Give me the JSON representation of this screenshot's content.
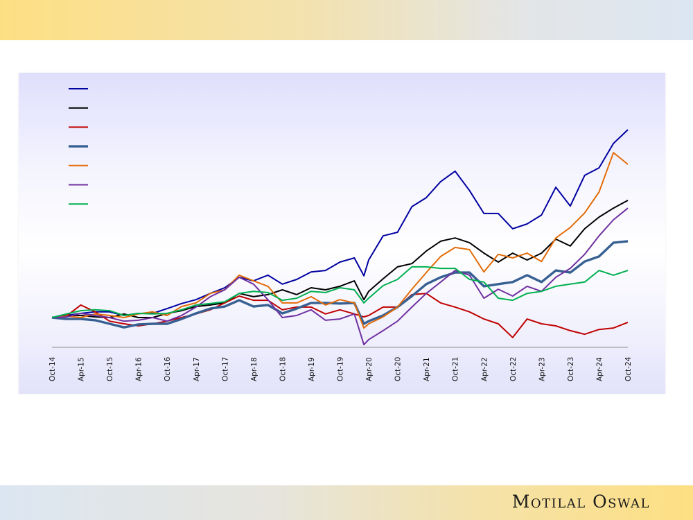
{
  "logo": {
    "text": "Motilal Oswal"
  },
  "chart_data": {
    "type": "line",
    "title": "",
    "xlabel": "",
    "ylabel": "",
    "x_unit": "months since Oct-14",
    "x": [
      0,
      3,
      6,
      9,
      12,
      15,
      18,
      21,
      24,
      27,
      30,
      33,
      36,
      39,
      42,
      45,
      48,
      51,
      54,
      57,
      60,
      63,
      65,
      66,
      69,
      72,
      75,
      78,
      81,
      84,
      87,
      90,
      93,
      96,
      99,
      102,
      105,
      108,
      111,
      114,
      117,
      120
    ],
    "xlim": [
      0,
      120
    ],
    "ylim": [
      0,
      900
    ],
    "grid": false,
    "y_axis_visible": false,
    "legend": {
      "placement": "top-left",
      "labels_visible": false
    },
    "x_tick_labels": [
      "Oct-14",
      "Apr-15",
      "Oct-15",
      "Apr-16",
      "Oct-16",
      "Apr-17",
      "Oct-17",
      "Apr-18",
      "Oct-18",
      "Apr-19",
      "Oct-19",
      "Apr-20",
      "Oct-20",
      "Apr-21",
      "Oct-21",
      "Apr-22",
      "Oct-22",
      "Apr-23",
      "Oct-23",
      "Apr-24",
      "Oct-24"
    ],
    "x_tick_months": [
      0,
      6,
      12,
      18,
      24,
      30,
      36,
      42,
      48,
      54,
      60,
      66,
      72,
      78,
      84,
      90,
      96,
      102,
      108,
      114,
      120
    ],
    "series": [
      {
        "color": "#0000a0",
        "weight": "normal",
        "values": [
          100,
          107,
          114,
          119,
          119,
          107,
          114,
          114,
          130,
          147,
          160,
          181,
          200,
          235,
          223,
          242,
          212,
          228,
          253,
          258,
          286,
          300,
          240,
          293,
          374,
          386,
          472,
          502,
          556,
          591,
          526,
          449,
          449,
          398,
          414,
          444,
          537,
          474,
          577,
          602,
          684,
          730
        ]
      },
      {
        "color": "#000000",
        "weight": "normal",
        "values": [
          100,
          107,
          107,
          102,
          100,
          112,
          100,
          100,
          114,
          123,
          137,
          142,
          149,
          181,
          170,
          177,
          193,
          177,
          200,
          193,
          205,
          223,
          160,
          188,
          230,
          270,
          281,
          323,
          356,
          367,
          351,
          316,
          286,
          316,
          293,
          316,
          363,
          340,
          398,
          437,
          467,
          493
        ]
      },
      {
        "color": "#c00000",
        "weight": "normal",
        "values": [
          100,
          105,
          142,
          119,
          88,
          79,
          72,
          79,
          88,
          100,
          112,
          126,
          149,
          172,
          158,
          158,
          126,
          135,
          135,
          112,
          126,
          112,
          102,
          107,
          135,
          135,
          177,
          181,
          149,
          135,
          119,
          95,
          79,
          33,
          95,
          79,
          72,
          56,
          44,
          60,
          65,
          84
        ]
      },
      {
        "color": "#376092",
        "weight": "thick",
        "values": [
          100,
          95,
          95,
          91,
          79,
          67,
          77,
          79,
          79,
          95,
          114,
          130,
          137,
          158,
          137,
          142,
          114,
          130,
          149,
          149,
          147,
          149,
          79,
          88,
          107,
          135,
          172,
          212,
          235,
          251,
          251,
          205,
          212,
          219,
          242,
          219,
          258,
          251,
          288,
          305,
          351,
          356
        ]
      },
      {
        "color": "#e36c09",
        "weight": "normal",
        "values": [
          100,
          105,
          100,
          112,
          107,
          100,
          112,
          119,
          107,
          137,
          149,
          181,
          193,
          242,
          223,
          205,
          149,
          149,
          170,
          142,
          160,
          149,
          65,
          79,
          102,
          135,
          195,
          251,
          305,
          335,
          328,
          253,
          312,
          300,
          316,
          288,
          367,
          402,
          451,
          521,
          653,
          614
        ]
      },
      {
        "color": "#7030a0",
        "weight": "normal",
        "values": [
          100,
          102,
          114,
          107,
          100,
          88,
          91,
          100,
          88,
          107,
          135,
          170,
          193,
          235,
          212,
          160,
          100,
          107,
          126,
          91,
          95,
          112,
          9,
          26,
          56,
          88,
          135,
          181,
          219,
          258,
          242,
          165,
          195,
          172,
          205,
          188,
          235,
          265,
          312,
          374,
          428,
          467
        ]
      },
      {
        "color": "#00b050",
        "weight": "normal",
        "values": [
          100,
          112,
          123,
          126,
          123,
          107,
          114,
          112,
          114,
          126,
          142,
          147,
          153,
          181,
          188,
          184,
          158,
          165,
          188,
          184,
          200,
          193,
          149,
          165,
          207,
          228,
          270,
          270,
          265,
          265,
          228,
          219,
          165,
          158,
          181,
          188,
          205,
          212,
          219,
          258,
          242,
          258
        ]
      }
    ]
  }
}
